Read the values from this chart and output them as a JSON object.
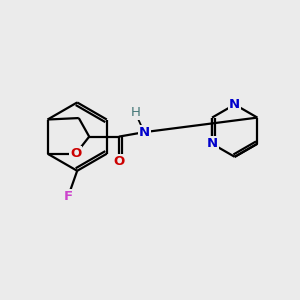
{
  "background_color": "#ebebeb",
  "line_color": "#000000",
  "bond_width": 1.6,
  "figsize": [
    3.0,
    3.0
  ],
  "dpi": 100,
  "F_color": "#cc44cc",
  "O_color": "#cc0000",
  "N_color": "#0000cc",
  "H_color": "#447777",
  "xlim": [
    0,
    10
  ],
  "ylim": [
    0,
    10
  ]
}
